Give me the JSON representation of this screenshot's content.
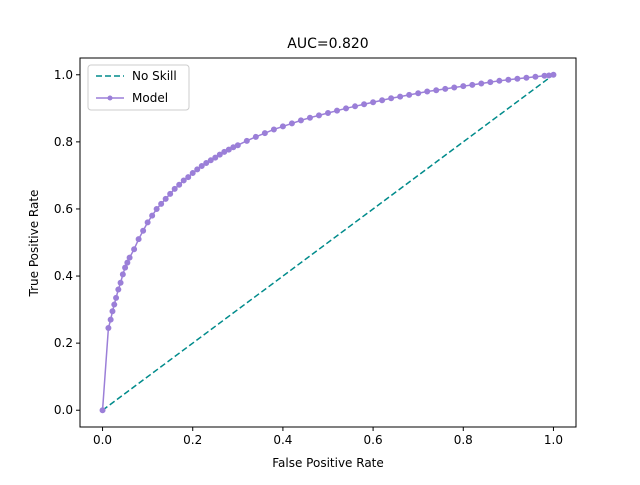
{
  "chart_data": {
    "type": "line",
    "title": "AUC=0.820",
    "xlabel": "False Positive Rate",
    "ylabel": "True Positive Rate",
    "xlim": [
      -0.05,
      1.05
    ],
    "ylim": [
      -0.05,
      1.05
    ],
    "x_ticks": [
      0.0,
      0.2,
      0.4,
      0.6,
      0.8,
      1.0
    ],
    "x_tick_labels": [
      "0.0",
      "0.2",
      "0.4",
      "0.6",
      "0.8",
      "1.0"
    ],
    "y_ticks": [
      0.0,
      0.2,
      0.4,
      0.6,
      0.8,
      1.0
    ],
    "y_tick_labels": [
      "0.0",
      "0.2",
      "0.4",
      "0.6",
      "0.8",
      "1.0"
    ],
    "grid": false,
    "legend_position": "upper-left",
    "series": [
      {
        "name": "No Skill",
        "style": "dashed",
        "color": "#008b8b",
        "marker": "none",
        "x": [
          0.0,
          1.0
        ],
        "y": [
          0.0,
          1.0
        ]
      },
      {
        "name": "Model",
        "style": "solid",
        "color": "#9b7fd8",
        "marker": "dot",
        "x": [
          0.0,
          0.013,
          0.018,
          0.022,
          0.026,
          0.03,
          0.035,
          0.04,
          0.045,
          0.05,
          0.055,
          0.06,
          0.07,
          0.08,
          0.09,
          0.1,
          0.11,
          0.12,
          0.13,
          0.14,
          0.15,
          0.16,
          0.17,
          0.18,
          0.19,
          0.2,
          0.21,
          0.22,
          0.23,
          0.24,
          0.25,
          0.26,
          0.27,
          0.28,
          0.29,
          0.3,
          0.32,
          0.34,
          0.36,
          0.38,
          0.4,
          0.42,
          0.44,
          0.46,
          0.48,
          0.5,
          0.52,
          0.54,
          0.56,
          0.58,
          0.6,
          0.62,
          0.64,
          0.66,
          0.68,
          0.7,
          0.72,
          0.74,
          0.76,
          0.78,
          0.8,
          0.82,
          0.84,
          0.86,
          0.88,
          0.9,
          0.92,
          0.94,
          0.96,
          0.98,
          0.99,
          1.0
        ],
        "y": [
          0.0,
          0.245,
          0.27,
          0.295,
          0.315,
          0.335,
          0.36,
          0.38,
          0.405,
          0.425,
          0.44,
          0.455,
          0.48,
          0.51,
          0.535,
          0.56,
          0.58,
          0.6,
          0.615,
          0.63,
          0.645,
          0.66,
          0.672,
          0.685,
          0.695,
          0.707,
          0.718,
          0.728,
          0.737,
          0.745,
          0.753,
          0.762,
          0.77,
          0.777,
          0.784,
          0.79,
          0.803,
          0.815,
          0.826,
          0.837,
          0.846,
          0.855,
          0.864,
          0.872,
          0.879,
          0.886,
          0.893,
          0.9,
          0.906,
          0.912,
          0.918,
          0.924,
          0.93,
          0.935,
          0.94,
          0.945,
          0.95,
          0.954,
          0.958,
          0.962,
          0.966,
          0.97,
          0.974,
          0.978,
          0.982,
          0.985,
          0.988,
          0.991,
          0.994,
          0.997,
          0.998,
          1.0
        ]
      }
    ]
  }
}
